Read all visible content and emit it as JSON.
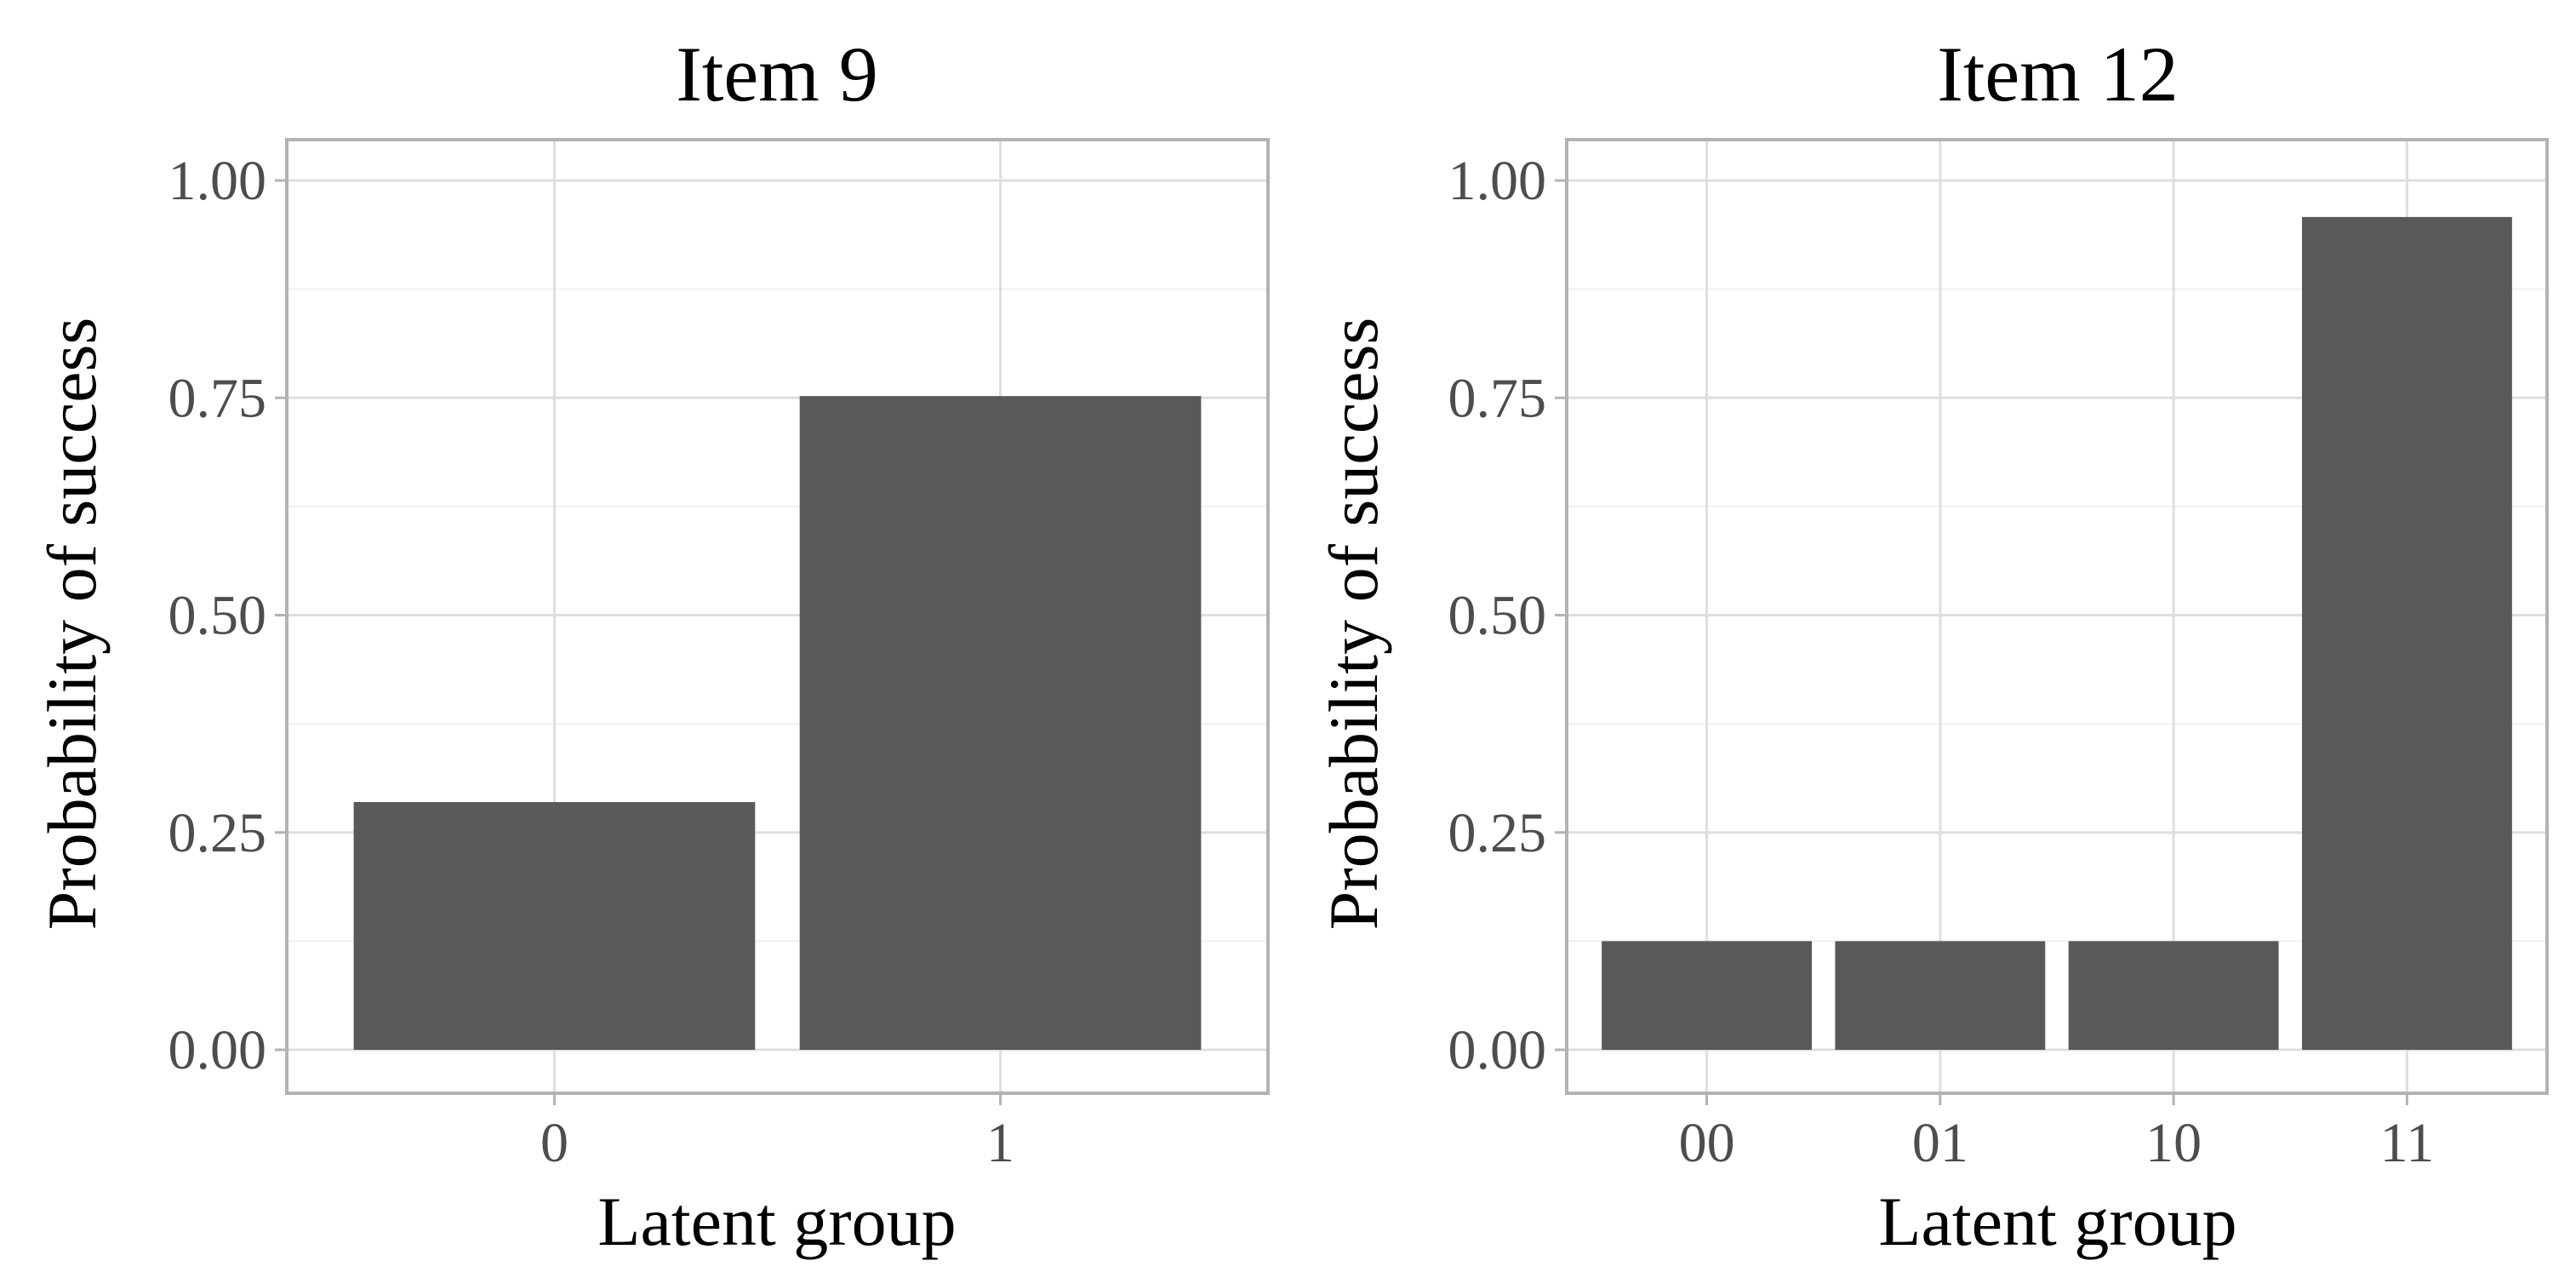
{
  "chart_data": [
    {
      "type": "bar",
      "title": "Item 9",
      "xlabel": "Latent group",
      "ylabel": "Probability of success",
      "categories": [
        "0",
        "1"
      ],
      "values": [
        0.285,
        0.752
      ],
      "ylim": [
        0,
        1
      ],
      "yticks": [
        "0.00",
        "0.25",
        "0.50",
        "0.75",
        "1.00"
      ],
      "grid": true,
      "bar_color": "#595959"
    },
    {
      "type": "bar",
      "title": "Item 12",
      "xlabel": "Latent group",
      "ylabel": "Probability of success",
      "categories": [
        "00",
        "01",
        "10",
        "11"
      ],
      "values": [
        0.125,
        0.125,
        0.125,
        0.958
      ],
      "ylim": [
        0,
        1
      ],
      "yticks": [
        "0.00",
        "0.25",
        "0.50",
        "0.75",
        "1.00"
      ],
      "grid": true,
      "bar_color": "#595959"
    }
  ],
  "colors": {
    "panel_border": "#b3b3b3",
    "grid_major": "#dedede",
    "grid_minor": "#efefef",
    "tick_text": "#4d4d4d",
    "bar": "#595959"
  }
}
